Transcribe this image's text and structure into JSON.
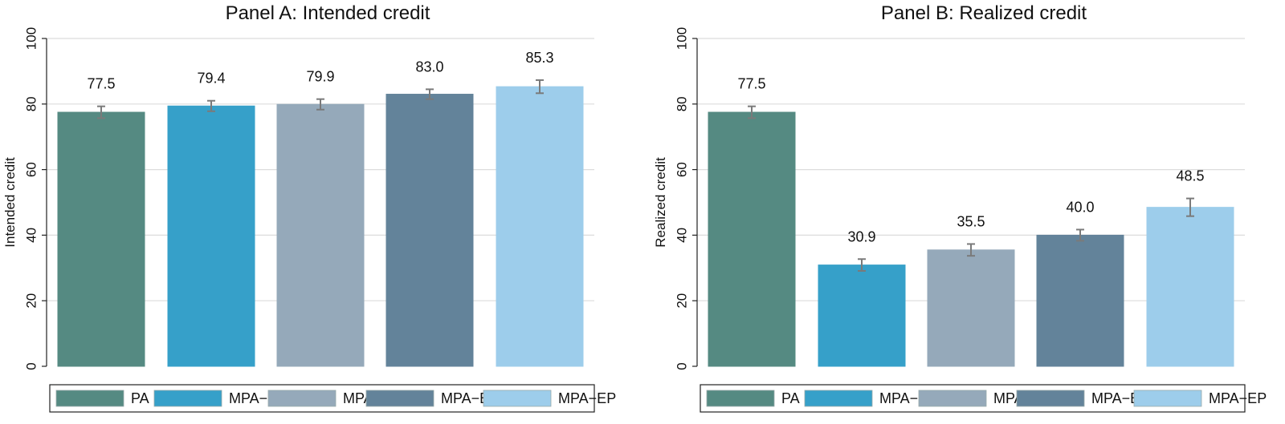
{
  "chart_data": [
    {
      "type": "bar",
      "title": "Panel A: Intended credit",
      "ylabel": "Intended credit",
      "xlabel": "",
      "ylim": [
        0,
        100
      ],
      "yticks": [
        0,
        20,
        40,
        60,
        80,
        100
      ],
      "categories": [
        "PA",
        "MPA−MD",
        "MPA−A",
        "MPA−ED",
        "MPA−EP"
      ],
      "values": [
        77.5,
        79.4,
        79.9,
        83.0,
        85.3
      ],
      "value_labels": [
        "77.5",
        "79.4",
        "79.9",
        "83.0",
        "85.3"
      ],
      "errors": [
        1.8,
        1.6,
        1.6,
        1.5,
        2.0
      ],
      "colors": [
        "#558a82",
        "#36a0c9",
        "#95a9ba",
        "#63839a",
        "#9dcdeb"
      ],
      "legend": [
        "PA",
        "MPA−MD",
        "MPA−A",
        "MPA−ED",
        "MPA−EP"
      ],
      "legend_position": "bottom",
      "grid": true
    },
    {
      "type": "bar",
      "title": "Panel B: Realized credit",
      "ylabel": "Realized credit",
      "xlabel": "",
      "ylim": [
        0,
        100
      ],
      "yticks": [
        0,
        20,
        40,
        60,
        80,
        100
      ],
      "categories": [
        "PA",
        "MPA−MD",
        "MPA−A",
        "MPA−ED",
        "MPA−EP"
      ],
      "values": [
        77.5,
        30.9,
        35.5,
        40.0,
        48.5
      ],
      "value_labels": [
        "77.5",
        "30.9",
        "35.5",
        "40.0",
        "48.5"
      ],
      "errors": [
        1.8,
        1.8,
        1.8,
        1.7,
        2.7
      ],
      "colors": [
        "#558a82",
        "#36a0c9",
        "#95a9ba",
        "#63839a",
        "#9dcdeb"
      ],
      "legend": [
        "PA",
        "MPA−MD",
        "MPA−A",
        "MPA−ED",
        "MPA−EP"
      ],
      "legend_position": "bottom",
      "grid": true
    }
  ]
}
